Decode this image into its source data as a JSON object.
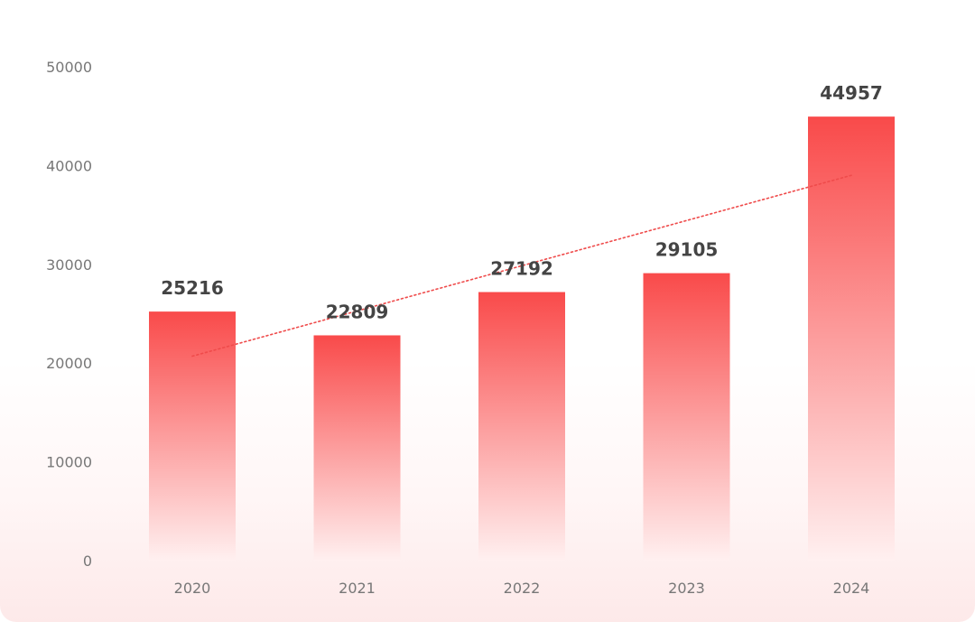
{
  "chart_data": {
    "type": "bar",
    "categories": [
      "2020",
      "2021",
      "2022",
      "2023",
      "2024"
    ],
    "values": [
      25216,
      22809,
      27192,
      29105,
      44957
    ],
    "title": "",
    "xlabel": "",
    "ylabel": "",
    "ylim": [
      0,
      50000
    ],
    "yticks": [
      "0",
      "10000",
      "20000",
      "30000",
      "40000",
      "50000"
    ],
    "trendline": {
      "style": "dotted",
      "type": "linear"
    },
    "grid": false,
    "colors": {
      "bar_top": "#f94a4a",
      "bar_bottom": "#fff0f0",
      "trendline": "#ef4b4b",
      "tick_text": "#777777",
      "value_text": "#444444",
      "background_bottom": "#fde9e9"
    }
  }
}
